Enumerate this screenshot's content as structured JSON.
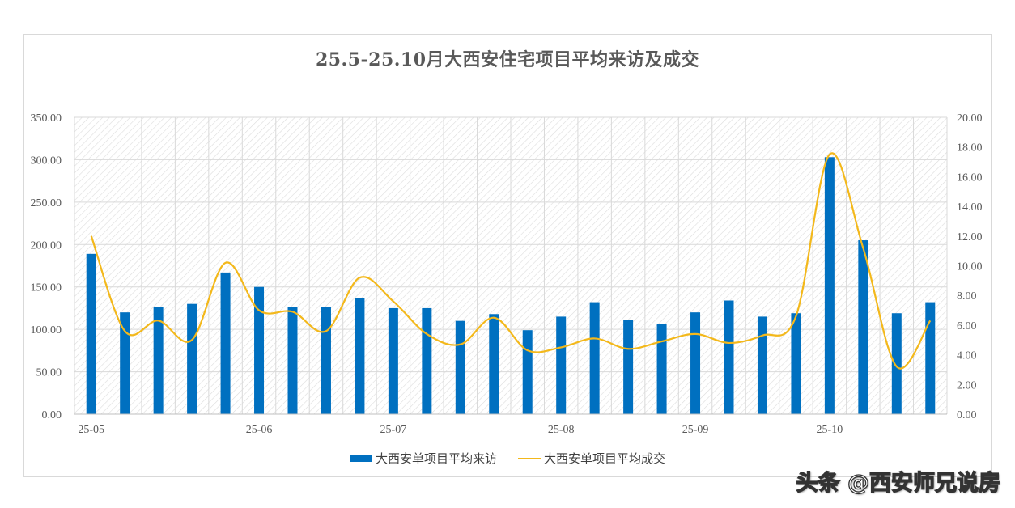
{
  "chart_data": {
    "type": "bar",
    "title": "25.5-25.10月大西安住宅项目平均来访及成交",
    "x": [
      "25-05-1",
      "25-05-2",
      "25-05-3",
      "25-05-4",
      "25-06-1",
      "25-06-2",
      "25-06-3",
      "25-06-4",
      "25-06-5",
      "25-07-1",
      "25-07-2",
      "25-07-3",
      "25-07-4",
      "25-08-1",
      "25-08-2",
      "25-08-3",
      "25-08-4",
      "25-08-5",
      "25-09-1",
      "25-09-2",
      "25-09-3",
      "25-09-4",
      "25-10-1",
      "25-10-2",
      "25-10-3",
      "25-10-4"
    ],
    "x_tick_labels": [
      {
        "index": 0,
        "label": "25-05"
      },
      {
        "index": 5,
        "label": "25-06"
      },
      {
        "index": 9,
        "label": "25-07"
      },
      {
        "index": 14,
        "label": "25-08"
      },
      {
        "index": 18,
        "label": "25-09"
      },
      {
        "index": 22,
        "label": "25-10"
      }
    ],
    "series": [
      {
        "name": "大西安单项目平均来访",
        "type": "bar",
        "axis": "left",
        "color": "#0070c0",
        "values": [
          189,
          120,
          126,
          130,
          167,
          150,
          126,
          126,
          137,
          125,
          125,
          110,
          118,
          99,
          115,
          132,
          111,
          106,
          120,
          134,
          115,
          119,
          303,
          205,
          119,
          132
        ]
      },
      {
        "name": "大西安单项目平均成交",
        "type": "line",
        "axis": "right",
        "color": "#f3b81b",
        "values": [
          12.0,
          5.6,
          6.3,
          5.0,
          10.2,
          7.0,
          6.9,
          5.6,
          9.2,
          7.6,
          5.4,
          4.7,
          6.5,
          4.3,
          4.5,
          5.1,
          4.4,
          4.9,
          5.4,
          4.8,
          5.3,
          6.6,
          17.5,
          11.2,
          3.2,
          6.3
        ]
      }
    ],
    "ylim_left": [
      0,
      350
    ],
    "yticks_left": [
      "0.00",
      "50.00",
      "100.00",
      "150.00",
      "200.00",
      "250.00",
      "300.00",
      "350.00"
    ],
    "ylim_right": [
      0,
      20
    ],
    "yticks_right": [
      "0.00",
      "2.00",
      "4.00",
      "6.00",
      "8.00",
      "10.00",
      "12.00",
      "14.00",
      "16.00",
      "18.00",
      "20.00"
    ],
    "grid": true,
    "legend_position": "bottom"
  },
  "watermark": "头条 @西安师兄说房"
}
